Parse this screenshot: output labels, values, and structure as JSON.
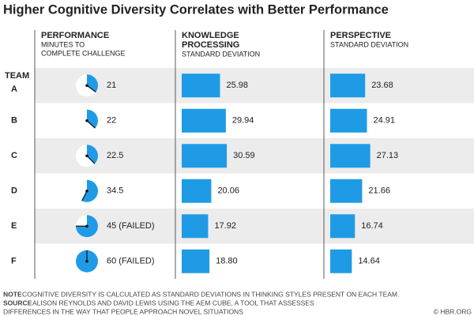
{
  "chart_data": {
    "type": "table",
    "title": "Higher Cognitive Diversity Correlates with Better Performance",
    "row_header": "TEAM",
    "categories": [
      "A",
      "B",
      "C",
      "D",
      "E",
      "F"
    ],
    "color": "#1f9be6",
    "columns": [
      {
        "type": "clock",
        "header": [
          "PERFORMANCE"
        ],
        "subheader": [
          "MINUTES TO",
          "COMPLETE CHALLENGE"
        ],
        "xlim": [
          0,
          60
        ],
        "values": [
          21,
          22,
          22.5,
          34.5,
          45,
          60
        ],
        "value_labels": [
          "21",
          "22",
          "22.5",
          "34.5",
          "45 (FAILED)",
          "60 (FAILED)"
        ]
      },
      {
        "type": "bar",
        "header": [
          "KNOWLEDGE",
          "PROCESSING"
        ],
        "subheader": [
          "STANDARD DEVIATION"
        ],
        "xlim": [
          0,
          90
        ],
        "values": [
          25.98,
          29.94,
          30.59,
          20.06,
          17.92,
          18.8
        ],
        "value_labels": [
          "25.98",
          "29.94",
          "30.59",
          "20.06",
          "17.92",
          "18.80"
        ]
      },
      {
        "type": "bar",
        "header": [
          "PERSPECTIVE"
        ],
        "subheader": [
          "STANDARD DEVIATION"
        ],
        "xlim": [
          0,
          90
        ],
        "values": [
          23.68,
          24.91,
          27.13,
          21.66,
          16.74,
          14.64
        ]
      }
    ],
    "note_label": "NOTE",
    "note": "COGNITIVE DIVERSITY IS CALCULATED AS STANDARD DEVIATIONS IN THINKING STYLES PRESENT ON EACH TEAM.",
    "source_label": "SOURCE",
    "source": [
      "ALISON REYNOLDS AND DAVID LEWIS USING THE AEM CUBE, A TOOL THAT ASSESSES",
      "DIFFERENCES IN THE WAY THAT PEOPLE APPROACH NOVEL SITUATIONS"
    ],
    "credit": "© HBR.ORG"
  }
}
